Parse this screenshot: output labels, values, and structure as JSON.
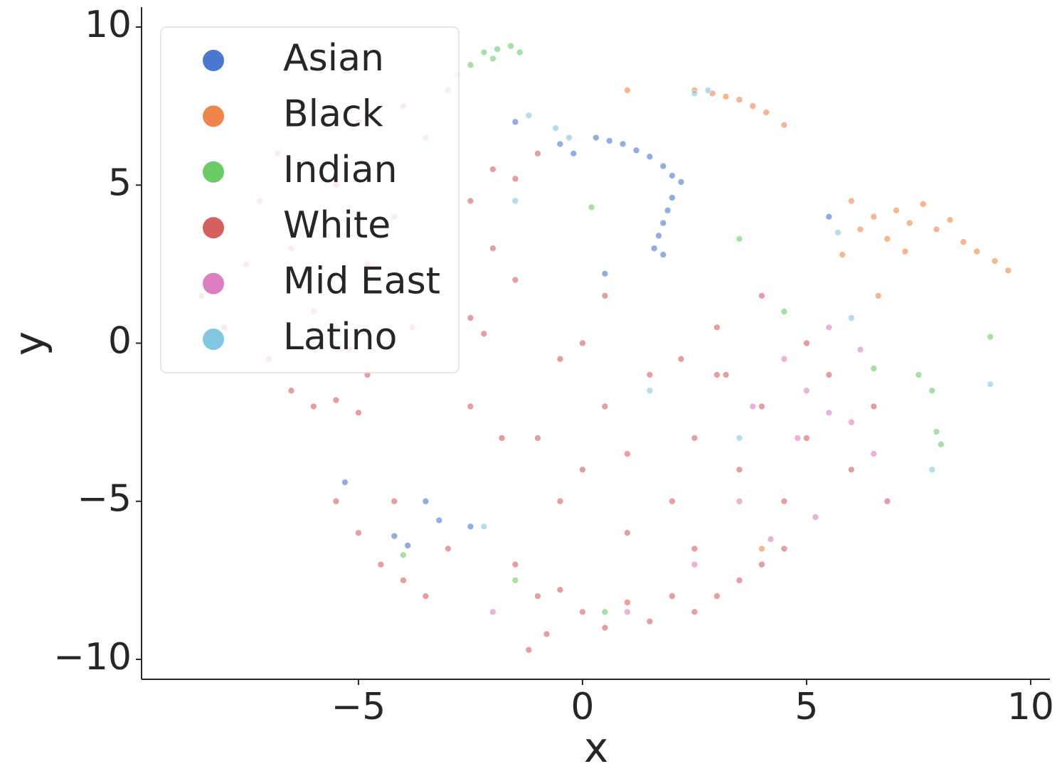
{
  "chart_data": {
    "type": "scatter",
    "x_label": "x",
    "y_label": "y",
    "xlim": [
      -9.84,
      10.43
    ],
    "ylim": [
      -10.63,
      10.63
    ],
    "xticks": [
      {
        "value": -5,
        "label": "−5"
      },
      0,
      5,
      10
    ],
    "yticks": [
      {
        "value": -10,
        "label": "−10"
      },
      {
        "value": -5,
        "label": "−5"
      },
      0,
      5,
      10
    ],
    "grid": false,
    "legend": "upper left",
    "series": [
      {
        "name": "Asian",
        "color": "#4878d0",
        "x": [
          0.3,
          0.6,
          0.9,
          1.2,
          1.5,
          1.8,
          2.0,
          2.2,
          2.0,
          1.9,
          1.8,
          1.7,
          1.6,
          1.8,
          -0.5,
          -0.2,
          0.5,
          -4.2,
          -3.9,
          -3.5,
          -3.2,
          -2.5,
          -5.3,
          5.5,
          -1.5
        ],
        "values": [
          6.5,
          6.4,
          6.3,
          6.1,
          5.9,
          5.6,
          5.3,
          5.1,
          4.6,
          4.2,
          3.8,
          3.4,
          3.0,
          2.8,
          6.3,
          6.0,
          2.2,
          -6.1,
          -6.4,
          -5.0,
          -5.6,
          -5.8,
          -4.4,
          4.0,
          7.0
        ]
      },
      {
        "name": "Black",
        "color": "#ee854a",
        "x": [
          2.5,
          2.9,
          3.2,
          3.5,
          3.8,
          4.1,
          4.5,
          6.0,
          6.5,
          7.0,
          7.3,
          7.6,
          7.9,
          8.2,
          6.8,
          7.2,
          8.5,
          8.8,
          9.2,
          9.5,
          6.2,
          5.8,
          6.6,
          1.0,
          4.0
        ],
        "values": [
          8.0,
          7.9,
          7.8,
          7.7,
          7.5,
          7.3,
          6.9,
          4.5,
          4.0,
          4.2,
          3.8,
          4.4,
          3.6,
          3.9,
          3.3,
          2.9,
          3.2,
          2.9,
          2.6,
          2.3,
          3.6,
          2.8,
          1.5,
          8.0,
          -6.5
        ]
      },
      {
        "name": "Indian",
        "color": "#6acc64",
        "x": [
          -2.2,
          -1.9,
          -1.6,
          -1.4,
          -2.0,
          -2.5,
          7.5,
          7.8,
          7.9,
          8.0,
          6.5,
          3.5,
          -4.0,
          0.5,
          4.5,
          9.1,
          0.2,
          -1.5
        ],
        "values": [
          9.2,
          9.3,
          9.4,
          9.2,
          9.0,
          8.8,
          -1.0,
          -1.5,
          -2.8,
          -3.2,
          -0.8,
          3.3,
          -6.7,
          -8.5,
          1.0,
          0.2,
          4.3,
          -7.5
        ]
      },
      {
        "name": "White",
        "color": "#d65f5f",
        "x": [
          -8.5,
          -8,
          -7.5,
          -7.2,
          -6.8,
          -6.5,
          -6,
          -5.5,
          -5,
          -4.8,
          -4.2,
          -3.5,
          -3,
          -3.8,
          -5.2,
          -7,
          -4,
          -6.5,
          -6,
          -5.5,
          -5,
          -4.8,
          -2.5,
          -2.2,
          -2.5,
          -2,
          -1.5,
          -2,
          -1.5,
          -1,
          -5.5,
          -5,
          -4.5,
          -4,
          -3.5,
          -4.2,
          -3,
          -1.5,
          -1,
          -0.5,
          0,
          0.5,
          1,
          1.5,
          2,
          2.5,
          3,
          3.5,
          4,
          4.5,
          -1,
          -0.5,
          0,
          0.5,
          1,
          1.5,
          2,
          2.5,
          3,
          3.5,
          4,
          4.5,
          5,
          5.5,
          6,
          6.5,
          6.8,
          3,
          4,
          -0.5,
          0,
          1,
          2.5,
          5,
          -1.8,
          -2.5,
          0.5,
          2.2,
          3.2,
          -0.8,
          -1.2
        ],
        "values": [
          1.5,
          0.5,
          2.5,
          4.5,
          6,
          3,
          1,
          5,
          7,
          2.5,
          4,
          6.5,
          8,
          0.5,
          -0.2,
          -0.5,
          7.5,
          -1.5,
          -2,
          -1.8,
          -2.2,
          -1,
          0.8,
          0.3,
          4.5,
          5.5,
          5.2,
          3,
          2,
          6,
          -5,
          -6,
          -7,
          -7.5,
          -8,
          -5,
          -6.5,
          -7,
          -8,
          -7.8,
          -8.5,
          -9,
          -8.2,
          -8.8,
          -8,
          -8.5,
          -8,
          -7.5,
          -7,
          -6.5,
          -3,
          -5,
          -4,
          -2,
          -3.5,
          -1,
          -5,
          -3,
          -1,
          -4,
          -2,
          -5,
          -3,
          -1,
          -4,
          -2,
          -5,
          0.5,
          1.5,
          -0.5,
          0,
          -6,
          -6.5,
          0,
          -3,
          -2,
          1.5,
          -0.5,
          -1,
          -9.2,
          -9.7
        ]
      },
      {
        "name": "Mid East",
        "color": "#dc7ec0",
        "x": [
          4.5,
          5,
          5.5,
          6,
          5.5,
          4.8,
          6.2,
          3.5,
          2.5,
          4.2,
          5.2,
          -2,
          1,
          6.5,
          3.8
        ],
        "values": [
          -0.5,
          -1.5,
          -2.2,
          -2.5,
          0.5,
          -3,
          -0.2,
          -5,
          -7,
          -6.2,
          -5.5,
          -8.5,
          -8.5,
          -3.5,
          -2
        ]
      },
      {
        "name": "Latino",
        "color": "#82c6e2",
        "x": [
          -0.6,
          -1.2,
          2.5,
          2.8,
          -2.8,
          -1.5,
          6,
          5.7,
          1.5,
          -2.2,
          7.8,
          9.1,
          -0.3,
          3.5
        ],
        "values": [
          6.8,
          7.2,
          7.9,
          8.0,
          8.5,
          4.5,
          0.8,
          3.5,
          -1.5,
          -5.8,
          -4,
          -1.3,
          6.5,
          -3
        ]
      }
    ]
  }
}
